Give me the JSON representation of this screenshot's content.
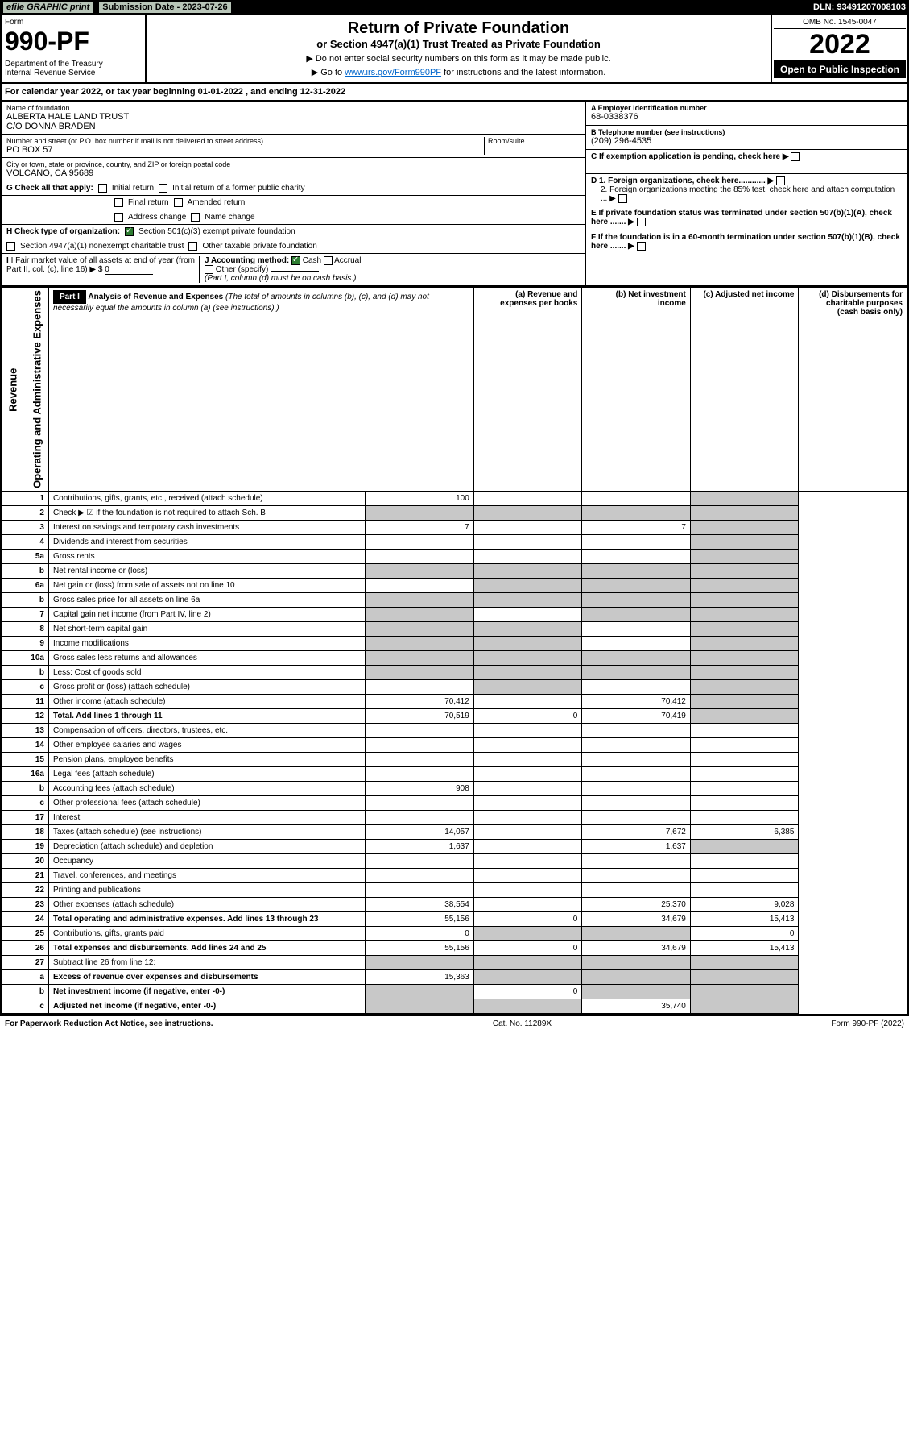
{
  "topbar": {
    "efile": "efile GRAPHIC print",
    "subdate_label": "Submission Date - 2023-07-26",
    "dln": "DLN: 93491207008103"
  },
  "header": {
    "form_label": "Form",
    "form_num": "990-PF",
    "dept": "Department of the Treasury\nInternal Revenue Service",
    "title": "Return of Private Foundation",
    "subtitle": "or Section 4947(a)(1) Trust Treated as Private Foundation",
    "note1": "▶ Do not enter social security numbers on this form as it may be made public.",
    "note2": "▶ Go to www.irs.gov/Form990PF for instructions and the latest information.",
    "link": "www.irs.gov/Form990PF",
    "omb": "OMB No. 1545-0047",
    "year": "2022",
    "inspect": "Open to Public Inspection"
  },
  "calyear": "For calendar year 2022, or tax year beginning 01-01-2022                           , and ending 12-31-2022",
  "id": {
    "name_lbl": "Name of foundation",
    "name": "ALBERTA HALE LAND TRUST\nC/O DONNA BRADEN",
    "addr_lbl": "Number and street (or P.O. box number if mail is not delivered to street address)",
    "addr": "PO BOX 57",
    "room_lbl": "Room/suite",
    "city_lbl": "City or town, state or province, country, and ZIP or foreign postal code",
    "city": "VOLCANO, CA  95689",
    "ein_lbl": "A Employer identification number",
    "ein": "68-0338376",
    "tel_lbl": "B Telephone number (see instructions)",
    "tel": "(209) 296-4535",
    "c_lbl": "C If exemption application is pending, check here ▶",
    "d1": "D 1. Foreign organizations, check here............ ▶",
    "d2": "2. Foreign organizations meeting the 85% test, check here and attach computation ... ▶",
    "e_lbl": "E If private foundation status was terminated under section 507(b)(1)(A), check here ....... ▶",
    "f_lbl": "F If the foundation is in a 60-month termination under section 507(b)(1)(B), check here ....... ▶"
  },
  "checks": {
    "g_lbl": "G Check all that apply:",
    "g_opts": [
      "Initial return",
      "Initial return of a former public charity",
      "Final return",
      "Amended return",
      "Address change",
      "Name change"
    ],
    "h_lbl": "H Check type of organization:",
    "h1": "Section 501(c)(3) exempt private foundation",
    "h2": "Section 4947(a)(1) nonexempt charitable trust",
    "h3": "Other taxable private foundation",
    "i_lbl": "I Fair market value of all assets at end of year (from Part II, col. (c), line 16) ▶ $",
    "i_val": "0",
    "j_lbl": "J Accounting method:",
    "j_cash": "Cash",
    "j_accrual": "Accrual",
    "j_other": "Other (specify)",
    "j_note": "(Part I, column (d) must be on cash basis.)"
  },
  "part1": {
    "label": "Part I",
    "title": "Analysis of Revenue and Expenses",
    "title_note": "(The total of amounts in columns (b), (c), and (d) may not necessarily equal the amounts in column (a) (see instructions).)",
    "cols": {
      "a": "(a) Revenue and expenses per books",
      "b": "(b) Net investment income",
      "c": "(c) Adjusted net income",
      "d": "(d) Disbursements for charitable purposes (cash basis only)"
    }
  },
  "vlabels": {
    "rev": "Revenue",
    "exp": "Operating and Administrative Expenses"
  },
  "rows": [
    {
      "n": "1",
      "d": "Contributions, gifts, grants, etc., received (attach schedule)",
      "a": "100",
      "shade_d": true
    },
    {
      "n": "2",
      "d": "Check ▶ ☑ if the foundation is not required to attach Sch. B",
      "shade_all": true
    },
    {
      "n": "3",
      "d": "Interest on savings and temporary cash investments",
      "a": "7",
      "c": "7",
      "shade_d": true
    },
    {
      "n": "4",
      "d": "Dividends and interest from securities",
      "shade_d": true
    },
    {
      "n": "5a",
      "d": "Gross rents",
      "shade_d": true
    },
    {
      "n": "b",
      "d": "Net rental income or (loss)",
      "shade_all": true
    },
    {
      "n": "6a",
      "d": "Net gain or (loss) from sale of assets not on line 10",
      "shade_bcd": true
    },
    {
      "n": "b",
      "d": "Gross sales price for all assets on line 6a",
      "shade_all": true
    },
    {
      "n": "7",
      "d": "Capital gain net income (from Part IV, line 2)",
      "shade_a": true,
      "shade_cd": true
    },
    {
      "n": "8",
      "d": "Net short-term capital gain",
      "shade_ab": true,
      "shade_d": true
    },
    {
      "n": "9",
      "d": "Income modifications",
      "shade_ab": true,
      "shade_d": true
    },
    {
      "n": "10a",
      "d": "Gross sales less returns and allowances",
      "shade_all": true
    },
    {
      "n": "b",
      "d": "Less: Cost of goods sold",
      "shade_all": true
    },
    {
      "n": "c",
      "d": "Gross profit or (loss) (attach schedule)",
      "shade_b": true,
      "shade_d": true
    },
    {
      "n": "11",
      "d": "Other income (attach schedule)",
      "a": "70,412",
      "c": "70,412",
      "shade_d": true
    },
    {
      "n": "12",
      "d": "Total. Add lines 1 through 11",
      "a": "70,519",
      "b": "0",
      "c": "70,419",
      "bold": true,
      "shade_d": true
    },
    {
      "n": "13",
      "d": "Compensation of officers, directors, trustees, etc."
    },
    {
      "n": "14",
      "d": "Other employee salaries and wages"
    },
    {
      "n": "15",
      "d": "Pension plans, employee benefits"
    },
    {
      "n": "16a",
      "d": "Legal fees (attach schedule)"
    },
    {
      "n": "b",
      "d": "Accounting fees (attach schedule)",
      "a": "908"
    },
    {
      "n": "c",
      "d": "Other professional fees (attach schedule)"
    },
    {
      "n": "17",
      "d": "Interest"
    },
    {
      "n": "18",
      "d": "Taxes (attach schedule) (see instructions)",
      "a": "14,057",
      "c": "7,672",
      "dd": "6,385"
    },
    {
      "n": "19",
      "d": "Depreciation (attach schedule) and depletion",
      "a": "1,637",
      "c": "1,637",
      "shade_d": true
    },
    {
      "n": "20",
      "d": "Occupancy"
    },
    {
      "n": "21",
      "d": "Travel, conferences, and meetings"
    },
    {
      "n": "22",
      "d": "Printing and publications"
    },
    {
      "n": "23",
      "d": "Other expenses (attach schedule)",
      "a": "38,554",
      "c": "25,370",
      "dd": "9,028"
    },
    {
      "n": "24",
      "d": "Total operating and administrative expenses. Add lines 13 through 23",
      "a": "55,156",
      "b": "0",
      "c": "34,679",
      "dd": "15,413",
      "bold": true
    },
    {
      "n": "25",
      "d": "Contributions, gifts, grants paid",
      "a": "0",
      "dd": "0",
      "shade_bc": true
    },
    {
      "n": "26",
      "d": "Total expenses and disbursements. Add lines 24 and 25",
      "a": "55,156",
      "b": "0",
      "c": "34,679",
      "dd": "15,413",
      "bold": true
    },
    {
      "n": "27",
      "d": "Subtract line 26 from line 12:",
      "shade_all": true
    },
    {
      "n": "a",
      "d": "Excess of revenue over expenses and disbursements",
      "a": "15,363",
      "bold": true,
      "shade_bcd": true
    },
    {
      "n": "b",
      "d": "Net investment income (if negative, enter -0-)",
      "b": "0",
      "bold": true,
      "shade_a": true,
      "shade_cd": true
    },
    {
      "n": "c",
      "d": "Adjusted net income (if negative, enter -0-)",
      "c": "35,740",
      "bold": true,
      "shade_ab": true,
      "shade_d": true
    }
  ],
  "footer": {
    "left": "For Paperwork Reduction Act Notice, see instructions.",
    "mid": "Cat. No. 11289X",
    "right": "Form 990-PF (2022)"
  }
}
